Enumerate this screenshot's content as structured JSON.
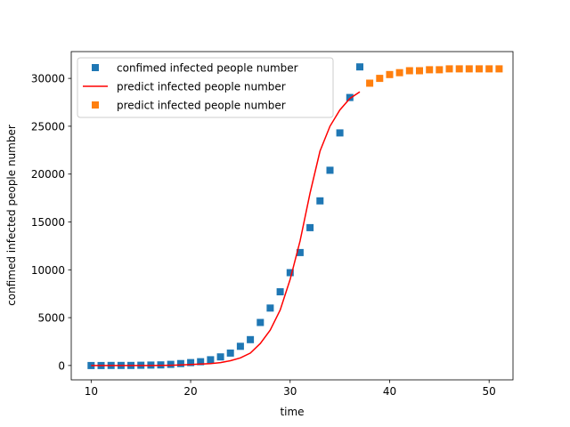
{
  "chart_data": {
    "type": "scatter",
    "title": "",
    "xlabel": "time",
    "ylabel": "confimed infected people number",
    "xlim": [
      8.0,
      52.4
    ],
    "ylim": [
      -1500,
      32800
    ],
    "xticks": [
      10,
      20,
      30,
      40,
      50
    ],
    "yticks": [
      0,
      5000,
      10000,
      15000,
      20000,
      25000,
      30000
    ],
    "legend_position": "upper-left",
    "series": [
      {
        "name": "confimed infected people number",
        "kind": "scatter",
        "marker": "square",
        "color": "#1f77b4",
        "x": [
          10,
          11,
          12,
          13,
          14,
          15,
          16,
          17,
          18,
          19,
          20,
          21,
          22,
          23,
          24,
          25,
          26,
          27,
          28,
          29,
          30,
          31,
          32,
          33,
          34,
          35,
          36,
          37
        ],
        "y": [
          0,
          0,
          5,
          5,
          10,
          20,
          40,
          60,
          120,
          200,
          300,
          400,
          600,
          900,
          1300,
          2000,
          2700,
          4500,
          6000,
          7700,
          9700,
          11800,
          14400,
          17200,
          20400,
          24300,
          28000,
          31200
        ]
      },
      {
        "name": "predict infected people number",
        "kind": "line",
        "color": "#ff0000",
        "x": [
          10,
          11,
          12,
          13,
          14,
          15,
          16,
          17,
          18,
          19,
          20,
          21,
          22,
          23,
          24,
          25,
          26,
          27,
          28,
          29,
          30,
          31,
          32,
          33,
          34,
          35,
          36,
          37
        ],
        "y": [
          0,
          0,
          0,
          0,
          0,
          0,
          0,
          10,
          20,
          50,
          100,
          150,
          200,
          300,
          500,
          800,
          1300,
          2300,
          3700,
          5800,
          9000,
          13000,
          18000,
          22400,
          25000,
          26700,
          27900,
          28600
        ]
      },
      {
        "name": "predict infected people number",
        "kind": "scatter",
        "marker": "square",
        "color": "#ff7f0e",
        "x": [
          38,
          39,
          40,
          41,
          42,
          43,
          44,
          45,
          46,
          47,
          48,
          49,
          50,
          51
        ],
        "y": [
          29500,
          30000,
          30400,
          30600,
          30800,
          30800,
          30900,
          30900,
          31000,
          31000,
          31000,
          31000,
          31000,
          31000
        ]
      }
    ]
  }
}
